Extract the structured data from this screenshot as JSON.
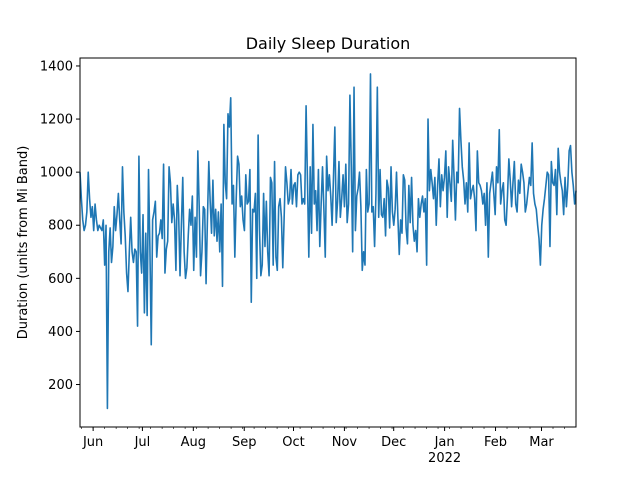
{
  "chart_data": {
    "type": "line",
    "title": "Daily Sleep Duration",
    "xlabel": "",
    "ylabel": "Duration (units from Mi Band)",
    "x_start": "2021-05-24",
    "x_end": "2022-03-22",
    "ylim": [
      40,
      1430
    ],
    "grid": false,
    "legend": "none",
    "line_color": "#1f77b4",
    "y_ticks": [
      200,
      400,
      600,
      800,
      1000,
      1200,
      1400
    ],
    "x_ticks": [
      {
        "date": "2021-06-01",
        "label": "Jun",
        "sublabel": ""
      },
      {
        "date": "2021-07-01",
        "label": "Jul",
        "sublabel": ""
      },
      {
        "date": "2021-08-01",
        "label": "Aug",
        "sublabel": ""
      },
      {
        "date": "2021-09-01",
        "label": "Sep",
        "sublabel": ""
      },
      {
        "date": "2021-10-01",
        "label": "Oct",
        "sublabel": ""
      },
      {
        "date": "2021-11-01",
        "label": "Nov",
        "sublabel": ""
      },
      {
        "date": "2021-12-01",
        "label": "Dec",
        "sublabel": ""
      },
      {
        "date": "2022-01-01",
        "label": "Jan",
        "sublabel": "2022"
      },
      {
        "date": "2022-02-01",
        "label": "Feb",
        "sublabel": ""
      },
      {
        "date": "2022-03-01",
        "label": "Mar",
        "sublabel": ""
      }
    ],
    "series": [
      {
        "values": [
          1000,
          900,
          820,
          780,
          800,
          850,
          1000,
          900,
          830,
          870,
          780,
          880,
          820,
          780,
          800,
          790,
          780,
          820,
          650,
          800,
          110,
          700,
          790,
          660,
          720,
          870,
          780,
          840,
          920,
          820,
          730,
          1020,
          850,
          760,
          620,
          550,
          700,
          830,
          700,
          660,
          710,
          700,
          420,
          1060,
          700,
          620,
          840,
          470,
          770,
          460,
          1010,
          720,
          350,
          820,
          850,
          890,
          680,
          760,
          770,
          820,
          750,
          1030,
          620,
          710,
          740,
          1020,
          960,
          810,
          880,
          820,
          630,
          950,
          840,
          610,
          800,
          980,
          700,
          600,
          640,
          760,
          860,
          800,
          910,
          630,
          830,
          680,
          1080,
          870,
          610,
          700,
          870,
          860,
          580,
          820,
          1040,
          890,
          770,
          970,
          760,
          860,
          740,
          850,
          700,
          880,
          570,
          1180,
          960,
          900,
          1220,
          1170,
          1280,
          880,
          950,
          680,
          900,
          1060,
          1030,
          870,
          910,
          820,
          780,
          990,
          880,
          890,
          1010,
          510,
          860,
          850,
          920,
          600,
          1140,
          780,
          610,
          650,
          920,
          720,
          890,
          700,
          610,
          980,
          960,
          650,
          1040,
          680,
          630,
          870,
          900,
          830,
          640,
          830,
          1020,
          960,
          880,
          900,
          1010,
          880,
          950,
          960,
          870,
          990,
          1000,
          990,
          880,
          900,
          880,
          1250,
          970,
          680,
          1020,
          770,
          1180,
          880,
          930,
          780,
          1010,
          720,
          880,
          1020,
          860,
          680,
          1060,
          930,
          990,
          910,
          800,
          980,
          1170,
          810,
          890,
          1040,
          830,
          900,
          990,
          870,
          1030,
          810,
          880,
          1290,
          1020,
          700,
          1320,
          780,
          910,
          940,
          1000,
          870,
          630,
          700,
          650,
          1010,
          850,
          880,
          1370,
          850,
          870,
          720,
          920,
          1320,
          830,
          1010,
          840,
          830,
          900,
          760,
          970,
          940,
          790,
          1020,
          850,
          800,
          860,
          1000,
          830,
          690,
          820,
          770,
          990,
          970,
          790,
          730,
          950,
          810,
          980,
          800,
          740,
          780,
          700,
          900,
          830,
          880,
          910,
          850,
          900,
          650,
          1200,
          930,
          1010,
          960,
          900,
          980,
          800,
          950,
          1050,
          870,
          990,
          930,
          980,
          1080,
          830,
          1020,
          960,
          890,
          1120,
          980,
          820,
          1000,
          960,
          1240,
          1120,
          1020,
          970,
          880,
          960,
          850,
          1110,
          900,
          930,
          950,
          900,
          780,
          1080,
          960,
          950,
          930,
          880,
          920,
          800,
          960,
          680,
          920,
          960,
          1000,
          920,
          840,
          1020,
          960,
          1160,
          880,
          930,
          960,
          820,
          800,
          910,
          1050,
          970,
          870,
          960,
          1040,
          880,
          850,
          970,
          920,
          1030,
          1000,
          960,
          850,
          880,
          930,
          980,
          950,
          1110,
          920,
          880,
          860,
          800,
          750,
          650,
          800,
          860,
          900,
          950,
          1000,
          990,
          720,
          1040,
          960,
          950,
          1010,
          840,
          1090,
          1000,
          960,
          930,
          840,
          980,
          870,
          950,
          1080,
          1100,
          1000,
          950,
          880,
          930
        ]
      }
    ]
  }
}
